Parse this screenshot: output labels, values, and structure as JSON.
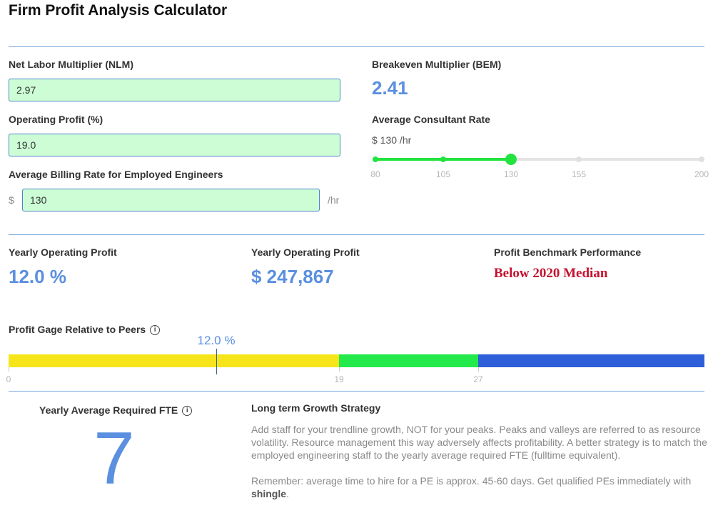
{
  "page": {
    "title": "Firm Profit Analysis Calculator"
  },
  "inputs": {
    "nlm": {
      "label": "Net Labor Multiplier (NLM)",
      "value": "2.97"
    },
    "op_profit": {
      "label": "Operating Profit (%)",
      "value": "19.0"
    },
    "billing": {
      "label": "Average Billing Rate for Employed Engineers",
      "prefix": "$",
      "value": "130",
      "suffix": "/hr"
    }
  },
  "bem": {
    "label": "Breakeven Multiplier (BEM)",
    "value": "2.41"
  },
  "consultant": {
    "label": "Average Consultant Rate",
    "display": "$ 130 /hr",
    "value": 130,
    "min": 80,
    "max": 200,
    "ticks": [
      "80",
      "105",
      "130",
      "155",
      "200"
    ]
  },
  "results": {
    "yearly_pct": {
      "label": "Yearly Operating Profit",
      "value": "12.0 %"
    },
    "yearly_usd": {
      "label": "Yearly Operating Profit",
      "value": "$ 247,867"
    },
    "benchmark": {
      "label": "Profit Benchmark Performance",
      "value": "Below 2020 Median"
    }
  },
  "gauge": {
    "label": "Profit Gage Relative to Peers",
    "marker_label": "12.0 %",
    "marker_value": 12.0,
    "ticks": [
      "0",
      "19",
      "27"
    ],
    "colors": {
      "yellow": "#f7e51b",
      "green": "#24e94a",
      "blue": "#2e5fd8"
    }
  },
  "fte": {
    "label": "Yearly Average Required FTE",
    "value": "7"
  },
  "strategy": {
    "title": "Long term Growth Strategy",
    "para1": "Add staff for your trendline growth, NOT for your peaks. Peaks and valleys are referred to as resource volatility. Resource management this way adversely affects profitability. A better strategy is to match the employed engineering staff to the yearly average required FTE (fulltime equivalent).",
    "para2_pre": "Remember: average time to hire for a PE is approx. 45-60 days. Get qualified PEs immediately with ",
    "para2_brand": "shingle",
    "para2_post": "."
  }
}
